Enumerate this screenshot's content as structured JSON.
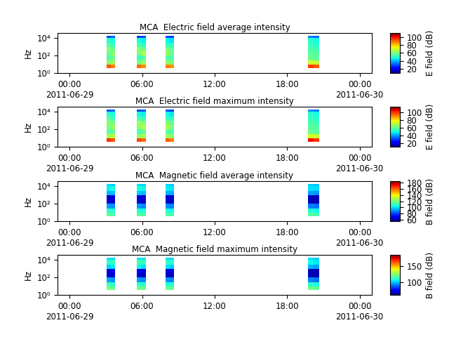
{
  "chart_data": [
    {
      "type": "heatmap",
      "title": "MCA  Electric field average intensity",
      "y_label": "Hz",
      "colorbar_label": "E field (dB)",
      "log": "y",
      "xlim": [
        "2011-06-28 23:00",
        "2011-06-30 01:00"
      ],
      "xticks": [
        {
          "value": "2011-06-29 00:00",
          "label": "00:00\n2011-06-29"
        },
        {
          "value": "2011-06-29 06:00",
          "label": "06:00"
        },
        {
          "value": "2011-06-29 12:00",
          "label": "12:00"
        },
        {
          "value": "2011-06-29 18:00",
          "label": "18:00"
        },
        {
          "value": "2011-06-30 00:00",
          "label": "00:00\n2011-06-30"
        }
      ],
      "ylim": [
        1,
        40000
      ],
      "yticks": [
        {
          "value": 1,
          "label": "10⁰"
        },
        {
          "value": 100,
          "label": "10²"
        },
        {
          "value": 10000,
          "label": "10⁴"
        }
      ],
      "y_edges": [
        4,
        10,
        30,
        100,
        300,
        1000,
        3000,
        10000,
        20000
      ],
      "color_range": [
        10,
        110
      ],
      "color_ticks": [
        20,
        40,
        60,
        80,
        100
      ],
      "segments": [
        {
          "x_edges": [
            "2011-06-29 03:05",
            "2011-06-29 03:25",
            "2011-06-29 03:45"
          ],
          "cells": [
            [
              92,
              62,
              55,
              58,
              60,
              55,
              50,
              30
            ],
            [
              88,
              65,
              58,
              62,
              58,
              52,
              48,
              32
            ]
          ]
        },
        {
          "x_edges": [
            "2011-06-29 05:35",
            "2011-06-29 05:55",
            "2011-06-29 06:20"
          ],
          "cells": [
            [
              90,
              60,
              52,
              60,
              62,
              54,
              48,
              28
            ],
            [
              86,
              64,
              56,
              66,
              58,
              50,
              46,
              30
            ]
          ]
        },
        {
          "x_edges": [
            "2011-06-29 07:55",
            "2011-06-29 08:15",
            "2011-06-29 08:40"
          ],
          "cells": [
            [
              88,
              63,
              55,
              64,
              60,
              52,
              47,
              30
            ],
            [
              85,
              60,
              54,
              58,
              56,
              50,
              45,
              28
            ]
          ]
        },
        {
          "x_edges": [
            "2011-06-29 19:45",
            "2011-06-29 20:10",
            "2011-06-29 20:40"
          ],
          "cells": [
            [
              95,
              70,
              58,
              56,
              54,
              52,
              50,
              35
            ],
            [
              92,
              68,
              56,
              55,
              53,
              50,
              48,
              33
            ]
          ]
        }
      ]
    },
    {
      "type": "heatmap",
      "title": "MCA  Electric field maximum intensity",
      "y_label": "Hz",
      "colorbar_label": "E field (dB)",
      "log": "y",
      "xlim": [
        "2011-06-28 23:00",
        "2011-06-30 01:00"
      ],
      "xticks": [
        {
          "value": "2011-06-29 00:00",
          "label": "00:00\n2011-06-29"
        },
        {
          "value": "2011-06-29 06:00",
          "label": "06:00"
        },
        {
          "value": "2011-06-29 12:00",
          "label": "12:00"
        },
        {
          "value": "2011-06-29 18:00",
          "label": "18:00"
        },
        {
          "value": "2011-06-30 00:00",
          "label": "00:00\n2011-06-30"
        }
      ],
      "ylim": [
        1,
        40000
      ],
      "yticks": [
        {
          "value": 1,
          "label": "10⁰"
        },
        {
          "value": 100,
          "label": "10²"
        },
        {
          "value": 10000,
          "label": "10⁴"
        }
      ],
      "y_edges": [
        4,
        10,
        30,
        100,
        300,
        1000,
        3000,
        10000,
        20000
      ],
      "color_range": [
        10,
        115
      ],
      "color_ticks": [
        20,
        40,
        60,
        80,
        100
      ],
      "segments": [
        {
          "x_edges": [
            "2011-06-29 03:05",
            "2011-06-29 03:25",
            "2011-06-29 03:45"
          ],
          "cells": [
            [
              100,
              68,
              58,
              62,
              64,
              58,
              52,
              32
            ],
            [
              96,
              70,
              60,
              66,
              62,
              55,
              50,
              34
            ]
          ]
        },
        {
          "x_edges": [
            "2011-06-29 05:35",
            "2011-06-29 05:55",
            "2011-06-29 06:20"
          ],
          "cells": [
            [
              98,
              66,
              56,
              64,
              66,
              57,
              50,
              30
            ],
            [
              94,
              68,
              60,
              70,
              62,
              54,
              48,
              32
            ]
          ]
        },
        {
          "x_edges": [
            "2011-06-29 07:55",
            "2011-06-29 08:15",
            "2011-06-29 08:40"
          ],
          "cells": [
            [
              96,
              67,
              58,
              68,
              64,
              55,
              49,
              32
            ],
            [
              92,
              64,
              57,
              62,
              60,
              53,
              47,
              30
            ]
          ]
        },
        {
          "x_edges": [
            "2011-06-29 19:45",
            "2011-06-29 20:10",
            "2011-06-29 20:40"
          ],
          "cells": [
            [
              104,
              74,
              60,
              58,
              56,
              54,
              52,
              38
            ],
            [
              100,
              72,
              58,
              57,
              55,
              52,
              50,
              36
            ]
          ]
        }
      ]
    },
    {
      "type": "heatmap",
      "title": "MCA  Magnetic field average intensity",
      "y_label": "Hz",
      "colorbar_label": "B field (dB)",
      "log": "y",
      "xlim": [
        "2011-06-28 23:00",
        "2011-06-30 01:00"
      ],
      "xticks": [
        {
          "value": "2011-06-29 00:00",
          "label": "00:00\n2011-06-29"
        },
        {
          "value": "2011-06-29 06:00",
          "label": "06:00"
        },
        {
          "value": "2011-06-29 12:00",
          "label": "12:00"
        },
        {
          "value": "2011-06-29 18:00",
          "label": "18:00"
        },
        {
          "value": "2011-06-30 00:00",
          "label": "00:00\n2011-06-30"
        }
      ],
      "ylim": [
        1,
        40000
      ],
      "yticks": [
        {
          "value": 1,
          "label": "10⁰"
        },
        {
          "value": 100,
          "label": "10²"
        },
        {
          "value": 10000,
          "label": "10⁴"
        }
      ],
      "y_edges": [
        4,
        10,
        30,
        100,
        300,
        1000,
        3000,
        10000,
        20000
      ],
      "color_range": [
        55,
        185
      ],
      "color_ticks": [
        60,
        80,
        100,
        120,
        140,
        160,
        180
      ],
      "segments": [
        {
          "x_edges": [
            "2011-06-29 03:05",
            "2011-06-29 03:25",
            "2011-06-29 03:45"
          ],
          "cells": [
            [
              115,
              108,
              92,
              66,
              64,
              95,
              102,
              100
            ],
            [
              112,
              106,
              90,
              64,
              66,
              96,
              104,
              98
            ]
          ]
        },
        {
          "x_edges": [
            "2011-06-29 05:35",
            "2011-06-29 05:55",
            "2011-06-29 06:20"
          ],
          "cells": [
            [
              114,
              107,
              91,
              65,
              66,
              97,
              104,
              100
            ],
            [
              113,
              105,
              89,
              63,
              65,
              95,
              103,
              99
            ]
          ]
        },
        {
          "x_edges": [
            "2011-06-29 07:55",
            "2011-06-29 08:15",
            "2011-06-29 08:40"
          ],
          "cells": [
            [
              113,
              106,
              90,
              64,
              65,
              94,
              102,
              99
            ],
            [
              112,
              104,
              88,
              63,
              64,
              93,
              101,
              98
            ]
          ]
        },
        {
          "x_edges": [
            "2011-06-29 19:45",
            "2011-06-29 20:10",
            "2011-06-29 20:40"
          ],
          "cells": [
            [
              114,
              106,
              88,
              62,
              62,
              92,
              100,
              98
            ],
            [
              112,
              104,
              86,
              61,
              62,
              90,
              99,
              97
            ]
          ]
        }
      ]
    },
    {
      "type": "heatmap",
      "title": "MCA  Magnetic field maximum intensity",
      "y_label": "Hz",
      "colorbar_label": "B field (dB)",
      "log": "y",
      "xlim": [
        "2011-06-28 23:00",
        "2011-06-30 01:00"
      ],
      "xticks": [
        {
          "value": "2011-06-29 00:00",
          "label": "00:00\n2011-06-29"
        },
        {
          "value": "2011-06-29 06:00",
          "label": "06:00"
        },
        {
          "value": "2011-06-29 12:00",
          "label": "12:00"
        },
        {
          "value": "2011-06-29 18:00",
          "label": "18:00"
        },
        {
          "value": "2011-06-30 00:00",
          "label": "00:00\n2011-06-30"
        }
      ],
      "ylim": [
        1,
        40000
      ],
      "yticks": [
        {
          "value": 1,
          "label": "10⁰"
        },
        {
          "value": 100,
          "label": "10²"
        },
        {
          "value": 10000,
          "label": "10⁴"
        }
      ],
      "y_edges": [
        4,
        10,
        30,
        100,
        300,
        1000,
        3000,
        10000,
        20000
      ],
      "color_range": [
        60,
        185
      ],
      "color_ticks": [
        100,
        150
      ],
      "segments": [
        {
          "x_edges": [
            "2011-06-29 03:05",
            "2011-06-29 03:25",
            "2011-06-29 03:45"
          ],
          "cells": [
            [
              122,
              112,
              96,
              70,
              70,
              102,
              110,
              104
            ],
            [
              120,
              110,
              94,
              68,
              72,
              104,
              112,
              102
            ]
          ]
        },
        {
          "x_edges": [
            "2011-06-29 05:35",
            "2011-06-29 05:55",
            "2011-06-29 06:20"
          ],
          "cells": [
            [
              121,
              111,
              95,
              69,
              72,
              106,
              114,
              104
            ],
            [
              120,
              109,
              93,
              67,
              70,
              103,
              111,
              103
            ]
          ]
        },
        {
          "x_edges": [
            "2011-06-29 07:55",
            "2011-06-29 08:15",
            "2011-06-29 08:40"
          ],
          "cells": [
            [
              120,
              110,
              94,
              68,
              70,
              104,
              112,
              103
            ],
            [
              119,
              108,
              92,
              67,
              69,
              101,
              109,
              102
            ]
          ]
        },
        {
          "x_edges": [
            "2011-06-29 19:45",
            "2011-06-29 20:10",
            "2011-06-29 20:40"
          ],
          "cells": [
            [
              121,
              110,
              92,
              66,
              66,
              98,
              106,
              102
            ],
            [
              119,
              108,
              90,
              65,
              66,
              96,
              104,
              101
            ]
          ]
        }
      ]
    }
  ]
}
